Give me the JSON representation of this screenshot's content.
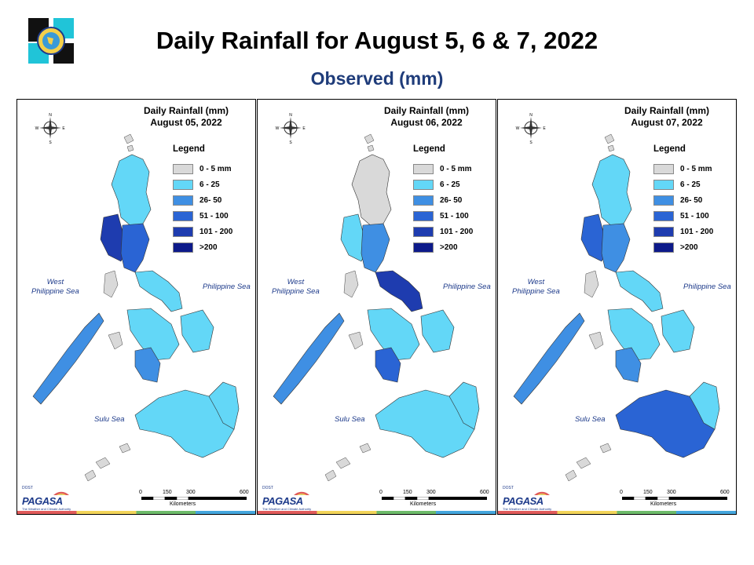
{
  "header": {
    "title": "Daily Rainfall for August 5, 6 & 7, 2022",
    "subtitle": "Observed (mm)"
  },
  "colors": {
    "none": "#d9d9d9",
    "light": "#63d7f7",
    "moderate": "#3f8fe3",
    "heavy": "#2a64d4",
    "intense": "#1e3caf",
    "torrential": "#0d1a8a",
    "title_blue": "#1f3c7a",
    "strip": [
      "#e05b5b",
      "#f2d45a",
      "#6dbb6a",
      "#45a6dd"
    ]
  },
  "panels": [
    {
      "title_line1": "Daily Rainfall (mm)",
      "title_line2": "August 05, 2022",
      "region_levels": {
        "north_luzon": "light",
        "west_luzon": "intense",
        "central_luzon": "heavy",
        "bicol": "light",
        "palawan": "moderate",
        "visayas": "light",
        "negros": "moderate",
        "mindanao": "light",
        "east_mindanao": "light"
      }
    },
    {
      "title_line1": "Daily Rainfall (mm)",
      "title_line2": "August 06, 2022",
      "region_levels": {
        "north_luzon": "none",
        "west_luzon": "light",
        "central_luzon": "moderate",
        "bicol": "intense",
        "palawan": "moderate",
        "visayas": "light",
        "negros": "heavy",
        "mindanao": "light",
        "east_mindanao": "light"
      }
    },
    {
      "title_line1": "Daily Rainfall (mm)",
      "title_line2": "August 07, 2022",
      "region_levels": {
        "north_luzon": "light",
        "west_luzon": "heavy",
        "central_luzon": "moderate",
        "bicol": "light",
        "palawan": "moderate",
        "visayas": "light",
        "negros": "moderate",
        "mindanao": "heavy",
        "east_mindanao": "light"
      }
    }
  ],
  "legend": {
    "heading": "Legend",
    "items": [
      {
        "label": "0 - 5 mm",
        "color": "#d9d9d9"
      },
      {
        "label": "6 - 25",
        "color": "#63d7f7"
      },
      {
        "label": "26- 50",
        "color": "#3f8fe3"
      },
      {
        "label": "51 - 100",
        "color": "#2a64d4"
      },
      {
        "label": "101 - 200",
        "color": "#1e3caf"
      },
      {
        "label": ">200",
        "color": "#0d1a8a"
      }
    ]
  },
  "seas": {
    "west_line1": "West",
    "west_line2": "Philippine Sea",
    "philippine": "Philippine Sea",
    "sulu": "Sulu Sea"
  },
  "scale": {
    "ticks": [
      "0",
      "150",
      "300",
      "600"
    ],
    "unit": "Kilometers"
  },
  "compass": {
    "n": "N",
    "s": "S",
    "e": "E",
    "w": "W"
  },
  "branding": {
    "agency": "PAGASA",
    "tagline": "The Weather and Climate Authority",
    "dost": "DOST"
  }
}
